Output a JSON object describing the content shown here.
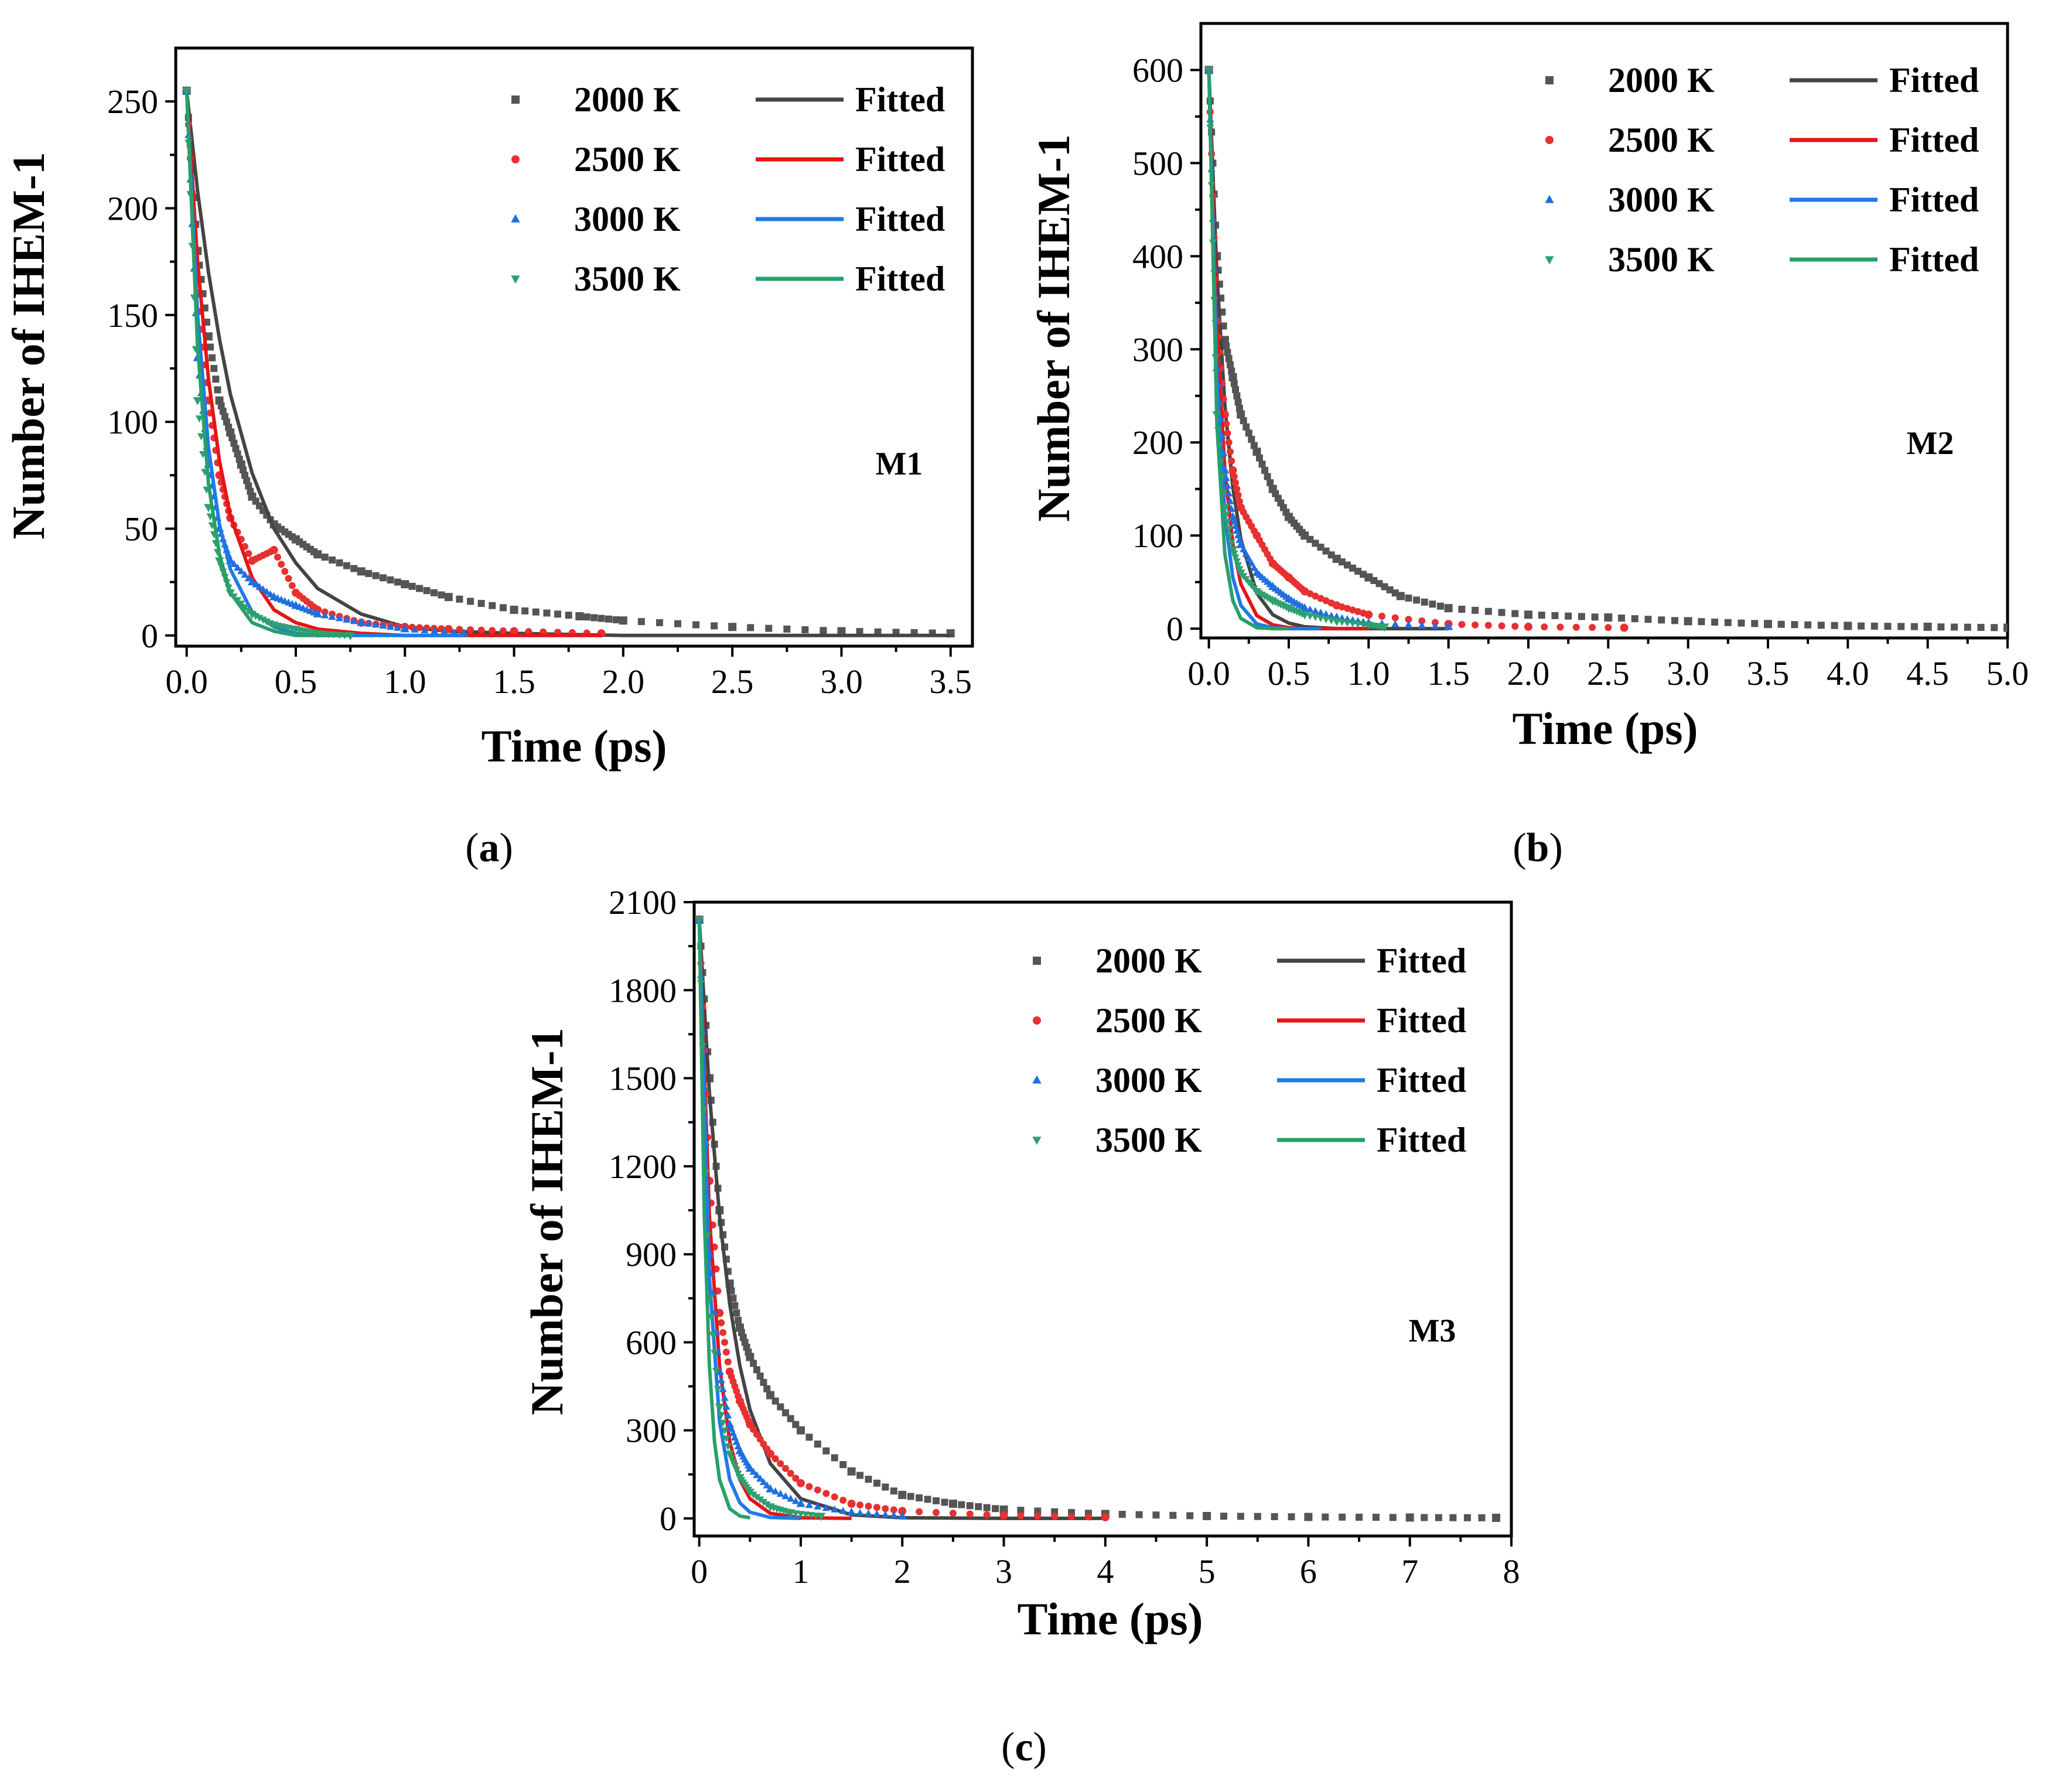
{
  "figure": {
    "panels": [
      {
        "id": "a",
        "caption": "a",
        "model_label": "M1"
      },
      {
        "id": "b",
        "caption": "b",
        "model_label": "M2"
      },
      {
        "id": "c",
        "caption": "c",
        "model_label": "M3"
      }
    ]
  },
  "chart_data": [
    {
      "type": "scatter",
      "panel": "a",
      "xlabel": "Time (ps)",
      "ylabel": "Number of IHEM-1",
      "annotation": "M1",
      "xlim": [
        -0.05,
        3.6
      ],
      "ylim": [
        -5,
        275
      ],
      "xticks": [
        0.0,
        0.5,
        1.0,
        1.5,
        2.0,
        2.5,
        3.0,
        3.5
      ],
      "xtick_labels": [
        "0.0",
        "0.5",
        "1.0",
        "1.5",
        "2.0",
        "2.5",
        "3.0",
        "3.5"
      ],
      "yticks": [
        0,
        50,
        100,
        150,
        200,
        250
      ],
      "ytick_labels": [
        "0",
        "50",
        "100",
        "150",
        "200",
        "250"
      ],
      "legend_placement": "top-right",
      "series": [
        {
          "name": "2000 K",
          "kind": "scatter",
          "marker": "square",
          "color": "#555555",
          "x": [
            0.0,
            0.05,
            0.1,
            0.15,
            0.2,
            0.25,
            0.3,
            0.4,
            0.5,
            0.6,
            0.8,
            1.0,
            1.2,
            1.5,
            1.8,
            2.0,
            2.5,
            3.0,
            3.5
          ],
          "y": [
            255,
            180,
            140,
            110,
            95,
            80,
            65,
            52,
            45,
            38,
            30,
            24,
            18,
            12,
            9,
            7,
            4,
            2,
            1
          ]
        },
        {
          "name": "Fitted",
          "kind": "line",
          "color": "#444444",
          "x": [
            0.0,
            0.05,
            0.1,
            0.15,
            0.2,
            0.3,
            0.4,
            0.5,
            0.6,
            0.8,
            1.0,
            1.2,
            1.5,
            2.0,
            2.5,
            3.0,
            3.5
          ],
          "y": [
            255,
            208,
            170,
            139,
            113,
            76,
            50,
            34,
            22,
            10,
            4,
            2,
            1,
            0,
            0,
            0,
            0
          ]
        },
        {
          "name": "2500 K",
          "kind": "scatter",
          "marker": "circle",
          "color": "#e83030",
          "x": [
            0.0,
            0.05,
            0.1,
            0.15,
            0.2,
            0.3,
            0.4,
            0.5,
            0.6,
            0.8,
            1.0,
            1.2,
            1.5,
            1.9
          ],
          "y": [
            255,
            160,
            110,
            75,
            55,
            35,
            40,
            20,
            12,
            6,
            4,
            3,
            2,
            1
          ]
        },
        {
          "name": "Fitted",
          "kind": "line",
          "color": "#e61515",
          "x": [
            0.0,
            0.05,
            0.1,
            0.15,
            0.2,
            0.3,
            0.4,
            0.5,
            0.6,
            0.8,
            1.0,
            1.5,
            1.9
          ],
          "y": [
            255,
            175,
            120,
            82,
            56,
            27,
            12,
            6,
            3,
            1,
            0,
            0,
            0
          ]
        },
        {
          "name": "3000 K",
          "kind": "scatter",
          "marker": "triangle-up",
          "color": "#1f6fe0",
          "x": [
            0.0,
            0.05,
            0.1,
            0.15,
            0.2,
            0.3,
            0.4,
            0.5,
            0.6,
            0.8,
            1.0,
            1.27
          ],
          "y": [
            255,
            130,
            80,
            50,
            35,
            25,
            18,
            14,
            10,
            6,
            3,
            1
          ]
        },
        {
          "name": "Fitted",
          "kind": "line",
          "color": "#1e7be6",
          "x": [
            0.0,
            0.05,
            0.1,
            0.15,
            0.2,
            0.3,
            0.4,
            0.5,
            0.6,
            0.8,
            1.0,
            1.27
          ],
          "y": [
            255,
            150,
            88,
            52,
            31,
            11,
            4,
            1,
            0,
            0,
            0,
            0
          ]
        },
        {
          "name": "3500 K",
          "kind": "scatter",
          "marker": "triangle-down",
          "color": "#2fa070",
          "x": [
            0.0,
            0.05,
            0.1,
            0.15,
            0.2,
            0.3,
            0.4,
            0.5,
            0.6,
            0.75
          ],
          "y": [
            255,
            110,
            60,
            35,
            20,
            10,
            5,
            3,
            1,
            0
          ]
        },
        {
          "name": "Fitted",
          "kind": "line",
          "color": "#28a06a",
          "x": [
            0.0,
            0.05,
            0.1,
            0.15,
            0.2,
            0.3,
            0.4,
            0.5,
            0.6,
            0.75
          ],
          "y": [
            255,
            135,
            71,
            38,
            20,
            6,
            2,
            0,
            0,
            0
          ]
        }
      ]
    },
    {
      "type": "scatter",
      "panel": "b",
      "xlabel": "Time (ps)",
      "ylabel": "Number of IHEM-1",
      "annotation": "M2",
      "xlim": [
        -0.05,
        5.0
      ],
      "ylim": [
        -10,
        650
      ],
      "xticks": [
        0.0,
        0.5,
        1.0,
        1.5,
        2.0,
        2.5,
        3.0,
        3.5,
        4.0,
        4.5,
        5.0
      ],
      "xtick_labels": [
        "0.0",
        "0.5",
        "1.0",
        "1.5",
        "2.0",
        "2.5",
        "3.0",
        "3.5",
        "4.0",
        "4.5",
        "5.0"
      ],
      "yticks": [
        0,
        100,
        200,
        300,
        400,
        500,
        600
      ],
      "ytick_labels": [
        "0",
        "100",
        "200",
        "300",
        "400",
        "500",
        "600"
      ],
      "legend_placement": "top-right",
      "series": [
        {
          "name": "2000 K",
          "kind": "scatter",
          "marker": "square",
          "color": "#555555",
          "x": [
            0.0,
            0.05,
            0.1,
            0.15,
            0.2,
            0.3,
            0.4,
            0.5,
            0.6,
            0.8,
            1.0,
            1.2,
            1.5,
            2.0,
            2.5,
            3.0,
            3.5,
            4.0,
            4.5,
            5.0
          ],
          "y": [
            600,
            400,
            310,
            270,
            230,
            190,
            150,
            120,
            100,
            75,
            55,
            35,
            22,
            15,
            12,
            8,
            5,
            3,
            2,
            1
          ]
        },
        {
          "name": "Fitted",
          "kind": "line",
          "color": "#444444",
          "x": [
            0.0,
            0.05,
            0.1,
            0.15,
            0.2,
            0.3,
            0.4,
            0.5,
            0.6,
            0.8,
            1.0,
            1.5
          ],
          "y": [
            600,
            380,
            240,
            152,
            96,
            38,
            15,
            6,
            2,
            0,
            0,
            0
          ]
        },
        {
          "name": "2500 K",
          "kind": "scatter",
          "marker": "circle",
          "color": "#e83030",
          "x": [
            0.0,
            0.05,
            0.1,
            0.15,
            0.2,
            0.3,
            0.4,
            0.5,
            0.6,
            0.8,
            1.0,
            1.5,
            2.0,
            2.6
          ],
          "y": [
            600,
            330,
            230,
            170,
            130,
            100,
            70,
            55,
            40,
            25,
            15,
            5,
            2,
            1
          ]
        },
        {
          "name": "Fitted",
          "kind": "line",
          "color": "#e61515",
          "x": [
            0.0,
            0.05,
            0.1,
            0.15,
            0.2,
            0.3,
            0.4,
            0.5,
            0.6,
            0.8,
            1.0
          ],
          "y": [
            600,
            320,
            170,
            91,
            48,
            14,
            4,
            1,
            0,
            0,
            0
          ]
        },
        {
          "name": "3000 K",
          "kind": "scatter",
          "marker": "triangle-up",
          "color": "#1f6fe0",
          "x": [
            0.0,
            0.05,
            0.1,
            0.15,
            0.2,
            0.3,
            0.4,
            0.5,
            0.6,
            0.8,
            1.0,
            1.5
          ],
          "y": [
            600,
            280,
            170,
            120,
            90,
            60,
            45,
            32,
            22,
            12,
            6,
            2
          ]
        },
        {
          "name": "Fitted",
          "kind": "line",
          "color": "#1e7be6",
          "x": [
            0.0,
            0.05,
            0.1,
            0.15,
            0.2,
            0.3,
            0.4,
            0.5,
            0.7
          ],
          "y": [
            600,
            270,
            122,
            55,
            25,
            5,
            1,
            0,
            0
          ]
        },
        {
          "name": "3500 K",
          "kind": "scatter",
          "marker": "triangle-down",
          "color": "#2fa070",
          "x": [
            0.0,
            0.05,
            0.1,
            0.15,
            0.2,
            0.3,
            0.4,
            0.5,
            0.6,
            0.8,
            1.0,
            1.1
          ],
          "y": [
            600,
            230,
            130,
            85,
            60,
            40,
            30,
            22,
            15,
            8,
            4,
            2
          ]
        },
        {
          "name": "Fitted",
          "kind": "line",
          "color": "#28a06a",
          "x": [
            0.0,
            0.05,
            0.1,
            0.15,
            0.2,
            0.3,
            0.4,
            0.5
          ],
          "y": [
            600,
            220,
            80,
            30,
            11,
            1,
            0,
            0
          ]
        }
      ]
    },
    {
      "type": "scatter",
      "panel": "c",
      "xlabel": "Time (ps)",
      "ylabel": "Number of IHEM-1",
      "annotation": "M3",
      "xlim": [
        -0.05,
        8.0
      ],
      "ylim": [
        -60,
        2100
      ],
      "xticks": [
        0,
        1,
        2,
        3,
        4,
        5,
        6,
        7,
        8
      ],
      "xtick_labels": [
        "0",
        "1",
        "2",
        "3",
        "4",
        "5",
        "6",
        "7",
        "8"
      ],
      "yticks": [
        0,
        300,
        600,
        900,
        1200,
        1500,
        1800,
        2100
      ],
      "ytick_labels": [
        "0",
        "300",
        "600",
        "900",
        "1200",
        "1500",
        "1800",
        "2100"
      ],
      "legend_placement": "top-right",
      "series": [
        {
          "name": "2000 K",
          "kind": "scatter",
          "marker": "square",
          "color": "#555555",
          "x": [
            0.0,
            0.1,
            0.2,
            0.3,
            0.4,
            0.5,
            0.7,
            1.0,
            1.5,
            2.0,
            2.5,
            3.0,
            4.0,
            5.0,
            6.0,
            7.0,
            7.85
          ],
          "y": [
            2040,
            1500,
            1050,
            800,
            650,
            550,
            420,
            300,
            160,
            80,
            50,
            30,
            15,
            8,
            5,
            3,
            2
          ]
        },
        {
          "name": "Fitted",
          "kind": "line",
          "color": "#444444",
          "x": [
            0.0,
            0.1,
            0.2,
            0.3,
            0.4,
            0.5,
            0.7,
            1.0,
            1.5,
            2.0,
            3.0,
            4.0
          ],
          "y": [
            2040,
            1450,
            1030,
            730,
            520,
            370,
            187,
            67,
            12,
            2,
            0,
            0
          ]
        },
        {
          "name": "2500 K",
          "kind": "scatter",
          "marker": "circle",
          "color": "#e83030",
          "x": [
            0.0,
            0.1,
            0.2,
            0.3,
            0.4,
            0.5,
            0.7,
            1.0,
            1.5,
            2.0,
            3.0,
            4.0
          ],
          "y": [
            2040,
            1150,
            700,
            500,
            400,
            320,
            220,
            120,
            50,
            25,
            10,
            4
          ]
        },
        {
          "name": "Fitted",
          "kind": "line",
          "color": "#e61515",
          "x": [
            0.0,
            0.1,
            0.2,
            0.3,
            0.4,
            0.5,
            0.7,
            1.0,
            1.5
          ],
          "y": [
            2040,
            1030,
            520,
            262,
            132,
            67,
            17,
            2,
            0
          ]
        },
        {
          "name": "3000 K",
          "kind": "scatter",
          "marker": "triangle-up",
          "color": "#1f6fe0",
          "x": [
            0.0,
            0.1,
            0.2,
            0.3,
            0.4,
            0.5,
            0.7,
            1.0,
            1.5,
            2.0
          ],
          "y": [
            2040,
            900,
            500,
            320,
            230,
            170,
            100,
            50,
            20,
            8
          ]
        },
        {
          "name": "Fitted",
          "kind": "line",
          "color": "#1e7be6",
          "x": [
            0.0,
            0.1,
            0.2,
            0.3,
            0.4,
            0.5,
            0.7,
            1.0
          ],
          "y": [
            2040,
            820,
            330,
            132,
            53,
            21,
            3,
            0
          ]
        },
        {
          "name": "3500 K",
          "kind": "scatter",
          "marker": "triangle-down",
          "color": "#2fa070",
          "x": [
            0.0,
            0.1,
            0.2,
            0.3,
            0.4,
            0.5,
            0.7,
            0.9,
            1.2
          ],
          "y": [
            2040,
            750,
            380,
            220,
            140,
            90,
            40,
            20,
            8
          ]
        },
        {
          "name": "Fitted",
          "kind": "line",
          "color": "#28a06a",
          "x": [
            0.0,
            0.05,
            0.1,
            0.15,
            0.2,
            0.3,
            0.4,
            0.5
          ],
          "y": [
            2040,
            1030,
            520,
            262,
            132,
            33,
            8,
            2
          ]
        }
      ]
    }
  ]
}
